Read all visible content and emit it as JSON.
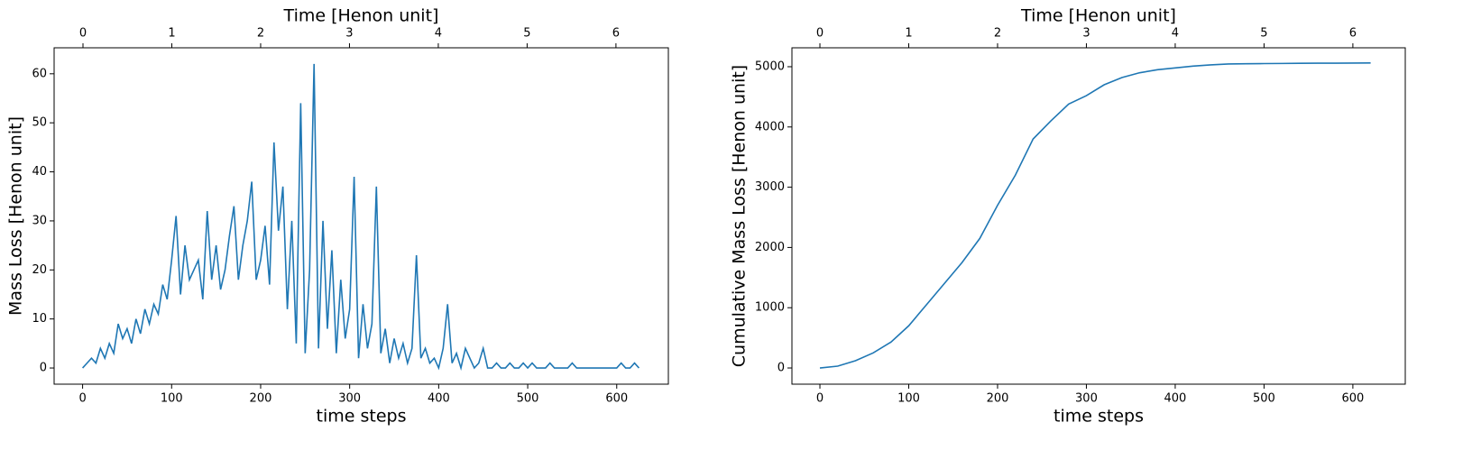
{
  "chart_data": [
    {
      "type": "line",
      "xlabel": "time steps",
      "ylabel": "Mass Loss [Henon unit]",
      "x2label": "Time [Henon unit]",
      "color": "#1f77b4",
      "x": [
        0,
        5,
        10,
        15,
        20,
        25,
        30,
        35,
        40,
        45,
        50,
        55,
        60,
        65,
        70,
        75,
        80,
        85,
        90,
        95,
        100,
        105,
        110,
        115,
        120,
        125,
        130,
        135,
        140,
        145,
        150,
        155,
        160,
        165,
        170,
        175,
        180,
        185,
        190,
        195,
        200,
        205,
        210,
        215,
        220,
        225,
        230,
        235,
        240,
        245,
        250,
        255,
        260,
        265,
        270,
        275,
        280,
        285,
        290,
        295,
        300,
        305,
        310,
        315,
        320,
        325,
        330,
        335,
        340,
        345,
        350,
        355,
        360,
        365,
        370,
        375,
        380,
        385,
        390,
        395,
        400,
        405,
        410,
        415,
        420,
        425,
        430,
        435,
        440,
        445,
        450,
        455,
        460,
        465,
        470,
        475,
        480,
        485,
        490,
        495,
        500,
        505,
        510,
        515,
        520,
        525,
        530,
        535,
        540,
        545,
        550,
        555,
        560,
        565,
        570,
        575,
        580,
        585,
        590,
        595,
        600,
        605,
        610,
        615,
        620,
        625
      ],
      "values": [
        0,
        1,
        2,
        1,
        4,
        2,
        5,
        3,
        9,
        6,
        8,
        5,
        10,
        7,
        12,
        9,
        13,
        11,
        17,
        14,
        22,
        31,
        15,
        25,
        18,
        20,
        22,
        14,
        32,
        18,
        25,
        16,
        20,
        27,
        33,
        18,
        25,
        30,
        38,
        18,
        22,
        29,
        17,
        46,
        28,
        37,
        12,
        30,
        5,
        54,
        3,
        20,
        62,
        4,
        30,
        8,
        24,
        3,
        18,
        6,
        12,
        39,
        2,
        13,
        4,
        9,
        37,
        3,
        8,
        1,
        6,
        2,
        5,
        1,
        4,
        23,
        2,
        4,
        1,
        2,
        0,
        4,
        13,
        1,
        3,
        0,
        4,
        2,
        0,
        1,
        4,
        0,
        0,
        1,
        0,
        0,
        1,
        0,
        0,
        1,
        0,
        1,
        0,
        0,
        0,
        1,
        0,
        0,
        0,
        0,
        1,
        0,
        0,
        0,
        0,
        0,
        0,
        0,
        0,
        0,
        0,
        1,
        0,
        0,
        1,
        0
      ],
      "xlim": [
        -32,
        658
      ],
      "xticks": [
        0,
        100,
        200,
        300,
        400,
        500,
        600
      ],
      "ylim": [
        -3.3,
        65.3
      ],
      "yticks": [
        0,
        10,
        20,
        30,
        40,
        50,
        60
      ],
      "x2lim": [
        -0.325,
        6.59
      ],
      "x2ticks": [
        0,
        1,
        2,
        3,
        4,
        5,
        6
      ]
    },
    {
      "type": "line",
      "xlabel": "time steps",
      "ylabel": "Cumulative Mass Loss [Henon unit]",
      "x2label": "Time [Henon unit]",
      "color": "#1f77b4",
      "x": [
        0,
        20,
        40,
        60,
        80,
        100,
        120,
        140,
        160,
        180,
        200,
        220,
        240,
        260,
        280,
        300,
        320,
        340,
        360,
        380,
        400,
        420,
        440,
        460,
        480,
        500,
        520,
        540,
        560,
        580,
        600,
        620
      ],
      "values": [
        0,
        30,
        120,
        250,
        430,
        700,
        1050,
        1400,
        1750,
        2150,
        2700,
        3200,
        3800,
        4100,
        4380,
        4520,
        4700,
        4820,
        4900,
        4950,
        4980,
        5010,
        5030,
        5045,
        5050,
        5052,
        5054,
        5056,
        5058,
        5059,
        5060,
        5062
      ],
      "xlim": [
        -31.5,
        659
      ],
      "xticks": [
        0,
        100,
        200,
        300,
        400,
        500,
        600
      ],
      "ylim": [
        -269,
        5314
      ],
      "yticks": [
        0,
        1000,
        2000,
        3000,
        4000,
        5000
      ],
      "x2lim": [
        -0.315,
        6.59
      ],
      "x2ticks": [
        0,
        1,
        2,
        3,
        4,
        5,
        6
      ]
    }
  ]
}
